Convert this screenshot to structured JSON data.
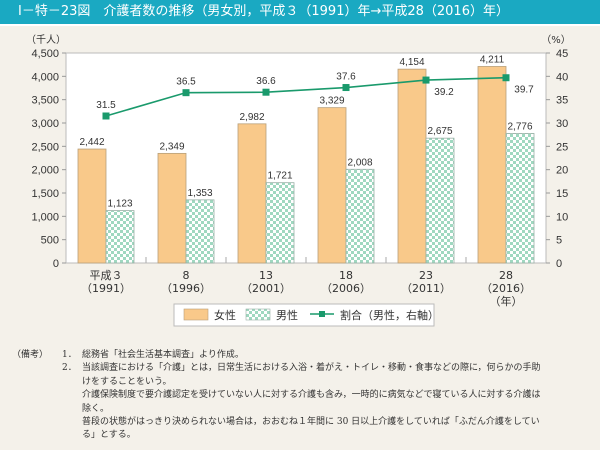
{
  "header": {
    "title": "Ⅰ－特－23図　介護者数の推移（男女別，平成３（1991）年→平成28（2016）年）"
  },
  "chart_data": {
    "type": "bar",
    "title": "介護者数の推移（男女別，平成３（1991）年→平成28（2016）年）",
    "left_axis_unit": "（千人）",
    "right_axis_unit": "（%）",
    "x_unit": "（年）",
    "categories": [
      {
        "era": "平成３",
        "year": "（1991）"
      },
      {
        "era": "8",
        "year": "（1996）"
      },
      {
        "era": "13",
        "year": "（2001）"
      },
      {
        "era": "18",
        "year": "（2006）"
      },
      {
        "era": "23",
        "year": "（2011）"
      },
      {
        "era": "28",
        "year": "（2016）"
      }
    ],
    "ylim": [
      0,
      4500
    ],
    "y_ticks": [
      "0",
      "500",
      "1,000",
      "1,500",
      "2,000",
      "2,500",
      "3,000",
      "3,500",
      "4,000",
      "4,500"
    ],
    "y2lim": [
      0,
      45
    ],
    "y2_ticks": [
      "0",
      "5",
      "10",
      "15",
      "20",
      "25",
      "30",
      "35",
      "40",
      "45"
    ],
    "series": [
      {
        "name": "女性",
        "type": "bar",
        "color": "#f9c98a",
        "values": [
          2442,
          2349,
          2982,
          3329,
          4154,
          4211
        ],
        "labels": [
          "2,442",
          "2,349",
          "2,982",
          "3,329",
          "4,154",
          "4,211"
        ]
      },
      {
        "name": "男性",
        "type": "bar",
        "color": "#9fd8c0",
        "values": [
          1123,
          1353,
          1721,
          2008,
          2675,
          2776
        ],
        "labels": [
          "1,123",
          "1,353",
          "1,721",
          "2,008",
          "2,675",
          "2,776"
        ]
      },
      {
        "name": "割合（男性，右軸）",
        "type": "line",
        "axis": "right",
        "color": "#1a9a6c",
        "values": [
          31.5,
          36.5,
          36.6,
          37.6,
          39.2,
          39.7
        ],
        "labels": [
          "31.5",
          "36.5",
          "36.6",
          "37.6",
          "39.2",
          "39.7"
        ]
      }
    ],
    "legend_position": "bottom"
  },
  "notes": {
    "prefix": "（備考）",
    "items": [
      {
        "num": "1．",
        "lines": [
          "総務省「社会生活基本調査」より作成。"
        ]
      },
      {
        "num": "2．",
        "lines": [
          "当該調査における「介護」とは，日常生活における入浴・着がえ・トイレ・移動・食事などの際に，何らかの手助",
          "けをすることをいう。",
          "介護保険制度で要介護認定を受けていない人に対する介護も含み，一時的に病気などで寝ている人に対する介護は",
          "除く。",
          "普段の状態がはっきり決められない場合は，おおむね１年間に 30 日以上介護をしていれば「ふだん介護をしてい",
          "る」とする。"
        ]
      }
    ]
  }
}
